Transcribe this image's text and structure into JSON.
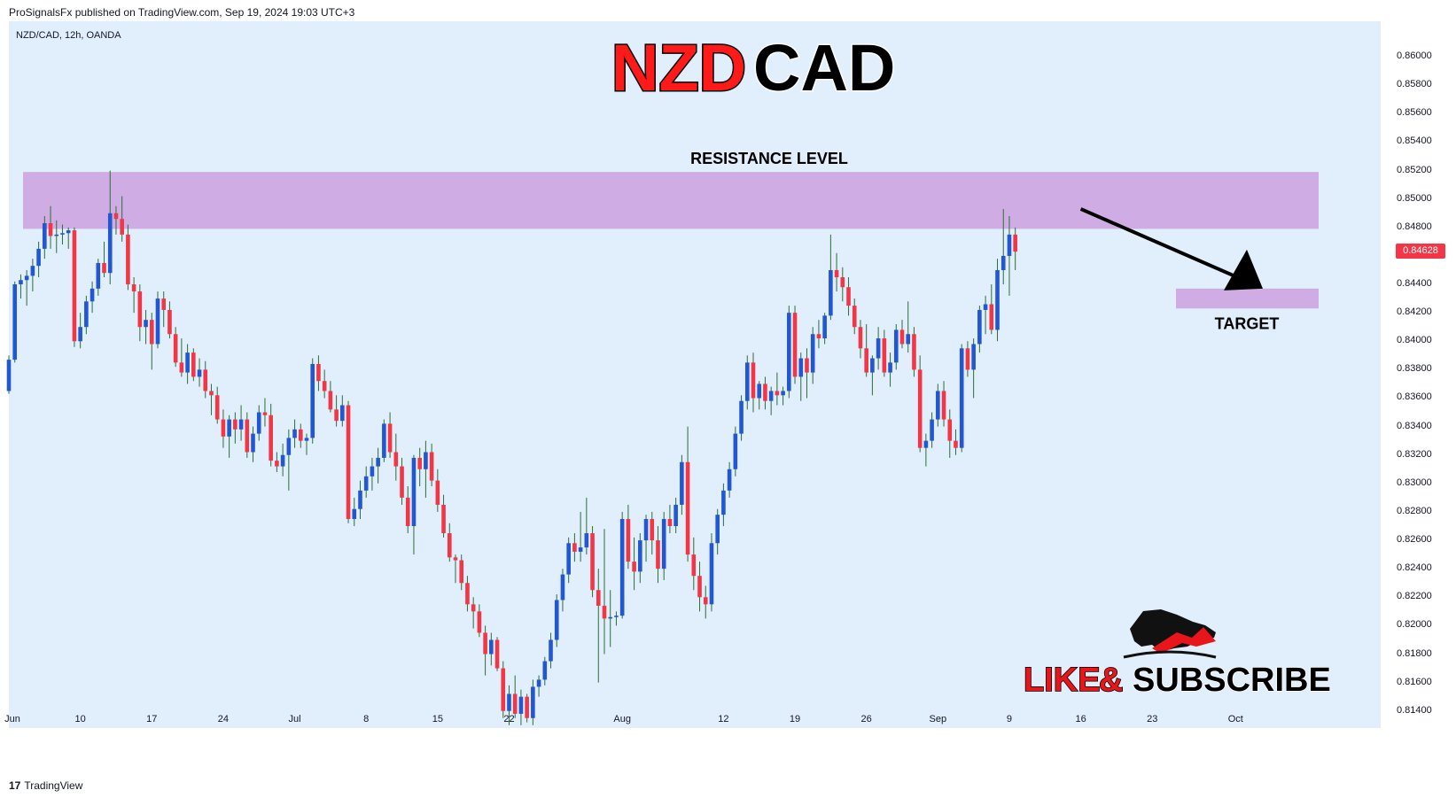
{
  "header": {
    "published_text": "ProSignalsFx published on TradingView.com, Sep 19, 2024 19:03 UTC+3",
    "symbol_text": "NZD/CAD, 12h, OANDA"
  },
  "footer": {
    "logo_text": "17",
    "brand_text": "TradingView"
  },
  "title": {
    "part1": "NZD",
    "part2": "CAD",
    "color1": "#ff1a1a",
    "color2": "#000000"
  },
  "annotations": {
    "resistance_label": "RESISTANCE LEVEL",
    "target_label": "TARGET",
    "resistance_zone": [
      0.8479,
      0.8519
    ],
    "target_zone": [
      0.8423,
      0.8437
    ],
    "zone_color": "#cda8e1",
    "arrow_from": {
      "x_index": 180,
      "price": 0.8493
    },
    "arrow_to": {
      "x_index": 199,
      "price": 0.8437
    }
  },
  "branding": {
    "like_text": "LIKE",
    "amp_text": "&",
    "subscribe_text": "SUBSCRIBE",
    "like_color": "#e8151b",
    "subscribe_color": "#000000"
  },
  "current_price": {
    "label": "0.84628",
    "color": "#f23645"
  },
  "chart_data": {
    "type": "candlestick",
    "symbol": "NZD/CAD",
    "timeframe": "12h",
    "source": "OANDA",
    "ylim": [
      0.8128,
      0.8625
    ],
    "up_color": "#2157d0",
    "down_color": "#f23645",
    "y_ticks": [
      0.86,
      0.858,
      0.856,
      0.854,
      0.852,
      0.85,
      0.848,
      0.846,
      0.844,
      0.842,
      0.84,
      0.838,
      0.836,
      0.834,
      0.832,
      0.83,
      0.828,
      0.826,
      0.824,
      0.822,
      0.82,
      0.818,
      0.816,
      0.814
    ],
    "y_tick_labels": [
      "0.86000",
      "0.85800",
      "0.85600",
      "0.85400",
      "0.85200",
      "0.85000",
      "0.84800",
      "0.84600",
      "0.84400",
      "0.84200",
      "0.84000",
      "0.83800",
      "0.83600",
      "0.83400",
      "0.83200",
      "0.83000",
      "0.82800",
      "0.82600",
      "0.82400",
      "0.82200",
      "0.82000",
      "0.81800",
      "0.81600",
      "0.81400"
    ],
    "x_ticks": [
      {
        "label": "Jun",
        "index": 0
      },
      {
        "label": "10",
        "index": 12
      },
      {
        "label": "17",
        "index": 24
      },
      {
        "label": "24",
        "index": 36
      },
      {
        "label": "Jul",
        "index": 48
      },
      {
        "label": "8",
        "index": 60
      },
      {
        "label": "15",
        "index": 72
      },
      {
        "label": "22",
        "index": 84
      },
      {
        "label": "Aug",
        "index": 103
      },
      {
        "label": "12",
        "index": 120
      },
      {
        "label": "19",
        "index": 132
      },
      {
        "label": "26",
        "index": 144
      },
      {
        "label": "Sep",
        "index": 156
      },
      {
        "label": "9",
        "index": 168
      },
      {
        "label": "16",
        "index": 180
      },
      {
        "label": "23",
        "index": 192
      },
      {
        "label": "Oct",
        "index": 206
      }
    ],
    "candles": [
      [
        0.8365,
        0.839,
        0.8363,
        0.8387
      ],
      [
        0.8387,
        0.8442,
        0.8385,
        0.844
      ],
      [
        0.844,
        0.8447,
        0.843,
        0.8443
      ],
      [
        0.8443,
        0.845,
        0.8425,
        0.8446
      ],
      [
        0.8446,
        0.8458,
        0.8435,
        0.8453
      ],
      [
        0.8453,
        0.847,
        0.8445,
        0.8465
      ],
      [
        0.8465,
        0.8488,
        0.8458,
        0.8483
      ],
      [
        0.8483,
        0.8495,
        0.8465,
        0.8474
      ],
      [
        0.8474,
        0.8485,
        0.8462,
        0.8475
      ],
      [
        0.8475,
        0.8482,
        0.8468,
        0.8476
      ],
      [
        0.8476,
        0.848,
        0.8465,
        0.8478
      ],
      [
        0.8478,
        0.848,
        0.8396,
        0.84
      ],
      [
        0.84,
        0.842,
        0.8395,
        0.841
      ],
      [
        0.841,
        0.8432,
        0.8405,
        0.8428
      ],
      [
        0.8428,
        0.8442,
        0.842,
        0.8437
      ],
      [
        0.8437,
        0.8458,
        0.8432,
        0.8455
      ],
      [
        0.8455,
        0.847,
        0.8445,
        0.8448
      ],
      [
        0.8448,
        0.852,
        0.844,
        0.849
      ],
      [
        0.849,
        0.8495,
        0.8475,
        0.8486
      ],
      [
        0.8486,
        0.8502,
        0.847,
        0.8475
      ],
      [
        0.8475,
        0.8482,
        0.8436,
        0.844
      ],
      [
        0.844,
        0.8445,
        0.842,
        0.8435
      ],
      [
        0.8435,
        0.844,
        0.84,
        0.841
      ],
      [
        0.841,
        0.8422,
        0.8398,
        0.8415
      ],
      [
        0.8415,
        0.842,
        0.838,
        0.8398
      ],
      [
        0.8398,
        0.8435,
        0.8395,
        0.843
      ],
      [
        0.843,
        0.8435,
        0.841,
        0.8422
      ],
      [
        0.8422,
        0.8428,
        0.8402,
        0.8405
      ],
      [
        0.8405,
        0.841,
        0.8382,
        0.8385
      ],
      [
        0.8385,
        0.8402,
        0.8375,
        0.8378
      ],
      [
        0.8378,
        0.8398,
        0.837,
        0.8392
      ],
      [
        0.8392,
        0.8395,
        0.8372,
        0.8375
      ],
      [
        0.8375,
        0.8388,
        0.8368,
        0.838
      ],
      [
        0.838,
        0.8386,
        0.836,
        0.8365
      ],
      [
        0.8365,
        0.837,
        0.8348,
        0.8362
      ],
      [
        0.8362,
        0.8368,
        0.8342,
        0.8345
      ],
      [
        0.8345,
        0.8352,
        0.8325,
        0.8333
      ],
      [
        0.8333,
        0.8348,
        0.8318,
        0.8345
      ],
      [
        0.8345,
        0.835,
        0.8328,
        0.8338
      ],
      [
        0.8338,
        0.8355,
        0.833,
        0.8345
      ],
      [
        0.8345,
        0.835,
        0.8318,
        0.8322
      ],
      [
        0.8322,
        0.834,
        0.8315,
        0.8335
      ],
      [
        0.8335,
        0.8355,
        0.833,
        0.835
      ],
      [
        0.835,
        0.836,
        0.834,
        0.8348
      ],
      [
        0.8348,
        0.8356,
        0.8312,
        0.8316
      ],
      [
        0.8316,
        0.8322,
        0.8308,
        0.8312
      ],
      [
        0.8312,
        0.8328,
        0.8305,
        0.832
      ],
      [
        0.832,
        0.8338,
        0.8295,
        0.8332
      ],
      [
        0.8332,
        0.8345,
        0.8325,
        0.8338
      ],
      [
        0.8338,
        0.8342,
        0.8325,
        0.833
      ],
      [
        0.833,
        0.8335,
        0.832,
        0.8332
      ],
      [
        0.8332,
        0.8388,
        0.8328,
        0.8384
      ],
      [
        0.8384,
        0.839,
        0.8365,
        0.8372
      ],
      [
        0.8372,
        0.838,
        0.836,
        0.8365
      ],
      [
        0.8365,
        0.8372,
        0.835,
        0.8352
      ],
      [
        0.8352,
        0.8362,
        0.834,
        0.8344
      ],
      [
        0.8344,
        0.8362,
        0.834,
        0.8355
      ],
      [
        0.8355,
        0.8358,
        0.8272,
        0.8275
      ],
      [
        0.8275,
        0.829,
        0.827,
        0.8282
      ],
      [
        0.8282,
        0.8302,
        0.8275,
        0.8295
      ],
      [
        0.8295,
        0.8312,
        0.829,
        0.8305
      ],
      [
        0.8305,
        0.8318,
        0.8295,
        0.8312
      ],
      [
        0.8312,
        0.8325,
        0.83,
        0.8318
      ],
      [
        0.8318,
        0.8345,
        0.8315,
        0.8342
      ],
      [
        0.8342,
        0.835,
        0.8318,
        0.8322
      ],
      [
        0.8322,
        0.8335,
        0.8302,
        0.8312
      ],
      [
        0.8312,
        0.8318,
        0.8285,
        0.829
      ],
      [
        0.829,
        0.8298,
        0.8265,
        0.827
      ],
      [
        0.827,
        0.832,
        0.825,
        0.8318
      ],
      [
        0.8318,
        0.8325,
        0.8298,
        0.831
      ],
      [
        0.831,
        0.833,
        0.829,
        0.8322
      ],
      [
        0.8322,
        0.8328,
        0.8298,
        0.8302
      ],
      [
        0.8302,
        0.831,
        0.828,
        0.8285
      ],
      [
        0.8285,
        0.8292,
        0.8262,
        0.8265
      ],
      [
        0.8265,
        0.8272,
        0.8245,
        0.8248
      ],
      [
        0.8248,
        0.825,
        0.823,
        0.8246
      ],
      [
        0.8246,
        0.825,
        0.8225,
        0.823
      ],
      [
        0.823,
        0.8235,
        0.821,
        0.8215
      ],
      [
        0.8215,
        0.822,
        0.8198,
        0.821
      ],
      [
        0.821,
        0.8215,
        0.8192,
        0.8195
      ],
      [
        0.8195,
        0.82,
        0.8165,
        0.818
      ],
      [
        0.818,
        0.8195,
        0.8172,
        0.819
      ],
      [
        0.819,
        0.8192,
        0.8168,
        0.817
      ],
      [
        0.817,
        0.8175,
        0.8135,
        0.814
      ],
      [
        0.814,
        0.8158,
        0.813,
        0.8152
      ],
      [
        0.8152,
        0.8165,
        0.8135,
        0.8138
      ],
      [
        0.8138,
        0.8155,
        0.813,
        0.815
      ],
      [
        0.815,
        0.8152,
        0.8132,
        0.8135
      ],
      [
        0.8135,
        0.8162,
        0.813,
        0.8157
      ],
      [
        0.8157,
        0.8165,
        0.815,
        0.8162
      ],
      [
        0.8162,
        0.8178,
        0.8158,
        0.8175
      ],
      [
        0.8175,
        0.8195,
        0.817,
        0.819
      ],
      [
        0.819,
        0.8222,
        0.8185,
        0.8218
      ],
      [
        0.8218,
        0.824,
        0.821,
        0.8236
      ],
      [
        0.8236,
        0.8262,
        0.823,
        0.8258
      ],
      [
        0.8258,
        0.8265,
        0.8245,
        0.8252
      ],
      [
        0.8252,
        0.828,
        0.8245,
        0.8255
      ],
      [
        0.8255,
        0.829,
        0.825,
        0.8265
      ],
      [
        0.8265,
        0.827,
        0.822,
        0.8225
      ],
      [
        0.8225,
        0.824,
        0.816,
        0.8214
      ],
      [
        0.8214,
        0.8268,
        0.818,
        0.8205
      ],
      [
        0.8205,
        0.8225,
        0.8185,
        0.8206
      ],
      [
        0.8206,
        0.821,
        0.82,
        0.8207
      ],
      [
        0.8207,
        0.828,
        0.8205,
        0.8275
      ],
      [
        0.8275,
        0.8285,
        0.824,
        0.8245
      ],
      [
        0.8245,
        0.8262,
        0.8225,
        0.8238
      ],
      [
        0.8238,
        0.8265,
        0.823,
        0.826
      ],
      [
        0.826,
        0.8278,
        0.8245,
        0.8275
      ],
      [
        0.8275,
        0.828,
        0.825,
        0.826
      ],
      [
        0.826,
        0.827,
        0.823,
        0.824
      ],
      [
        0.824,
        0.828,
        0.8232,
        0.8275
      ],
      [
        0.8275,
        0.8285,
        0.8265,
        0.827
      ],
      [
        0.827,
        0.829,
        0.8265,
        0.8285
      ],
      [
        0.8285,
        0.832,
        0.8278,
        0.8315
      ],
      [
        0.8315,
        0.834,
        0.8245,
        0.825
      ],
      [
        0.825,
        0.8262,
        0.8225,
        0.8235
      ],
      [
        0.8235,
        0.8245,
        0.821,
        0.822
      ],
      [
        0.822,
        0.8228,
        0.8205,
        0.8215
      ],
      [
        0.8215,
        0.8265,
        0.821,
        0.8258
      ],
      [
        0.8258,
        0.8282,
        0.825,
        0.8278
      ],
      [
        0.8278,
        0.83,
        0.827,
        0.8295
      ],
      [
        0.8295,
        0.8315,
        0.829,
        0.831
      ],
      [
        0.831,
        0.834,
        0.8305,
        0.8335
      ],
      [
        0.8335,
        0.8362,
        0.833,
        0.8358
      ],
      [
        0.8358,
        0.839,
        0.8352,
        0.8385
      ],
      [
        0.8385,
        0.8392,
        0.835,
        0.836
      ],
      [
        0.836,
        0.8372,
        0.8352,
        0.837
      ],
      [
        0.837,
        0.8375,
        0.8352,
        0.8358
      ],
      [
        0.8358,
        0.8368,
        0.8348,
        0.8365
      ],
      [
        0.8365,
        0.8378,
        0.8355,
        0.8362
      ],
      [
        0.8362,
        0.8368,
        0.8355,
        0.8365
      ],
      [
        0.8365,
        0.8425,
        0.836,
        0.842
      ],
      [
        0.842,
        0.8425,
        0.837,
        0.8375
      ],
      [
        0.8375,
        0.8392,
        0.8358,
        0.8388
      ],
      [
        0.8388,
        0.8395,
        0.836,
        0.8378
      ],
      [
        0.8378,
        0.841,
        0.837,
        0.8405
      ],
      [
        0.8405,
        0.8415,
        0.8395,
        0.8402
      ],
      [
        0.8402,
        0.842,
        0.8398,
        0.8418
      ],
      [
        0.8418,
        0.8475,
        0.8415,
        0.845
      ],
      [
        0.845,
        0.8462,
        0.8435,
        0.8445
      ],
      [
        0.8445,
        0.8452,
        0.8428,
        0.8438
      ],
      [
        0.8438,
        0.8445,
        0.8418,
        0.8425
      ],
      [
        0.8425,
        0.843,
        0.8405,
        0.841
      ],
      [
        0.841,
        0.8415,
        0.8388,
        0.8395
      ],
      [
        0.8395,
        0.8412,
        0.8375,
        0.8378
      ],
      [
        0.8378,
        0.839,
        0.8362,
        0.8388
      ],
      [
        0.8388,
        0.841,
        0.838,
        0.8402
      ],
      [
        0.8402,
        0.8408,
        0.8375,
        0.8378
      ],
      [
        0.8378,
        0.8392,
        0.8368,
        0.8385
      ],
      [
        0.8385,
        0.8412,
        0.838,
        0.8408
      ],
      [
        0.8408,
        0.8415,
        0.8395,
        0.8398
      ],
      [
        0.8398,
        0.8428,
        0.8392,
        0.8405
      ],
      [
        0.8405,
        0.841,
        0.8375,
        0.838
      ],
      [
        0.838,
        0.839,
        0.8322,
        0.8325
      ],
      [
        0.8325,
        0.8335,
        0.8312,
        0.833
      ],
      [
        0.833,
        0.835,
        0.8325,
        0.8345
      ],
      [
        0.8345,
        0.837,
        0.834,
        0.8365
      ],
      [
        0.8365,
        0.8372,
        0.834,
        0.8345
      ],
      [
        0.8345,
        0.8352,
        0.8318,
        0.833
      ],
      [
        0.833,
        0.8338,
        0.832,
        0.8325
      ],
      [
        0.8325,
        0.8398,
        0.8322,
        0.8395
      ],
      [
        0.8395,
        0.84,
        0.8375,
        0.838
      ],
      [
        0.838,
        0.8402,
        0.836,
        0.8398
      ],
      [
        0.8398,
        0.8425,
        0.8392,
        0.8422
      ],
      [
        0.8422,
        0.8432,
        0.8405,
        0.8426
      ],
      [
        0.8426,
        0.844,
        0.8405,
        0.8408
      ],
      [
        0.8408,
        0.8458,
        0.84,
        0.845
      ],
      [
        0.845,
        0.8493,
        0.844,
        0.846
      ],
      [
        0.846,
        0.8488,
        0.8432,
        0.8475
      ],
      [
        0.8475,
        0.848,
        0.845,
        0.8463
      ]
    ]
  }
}
